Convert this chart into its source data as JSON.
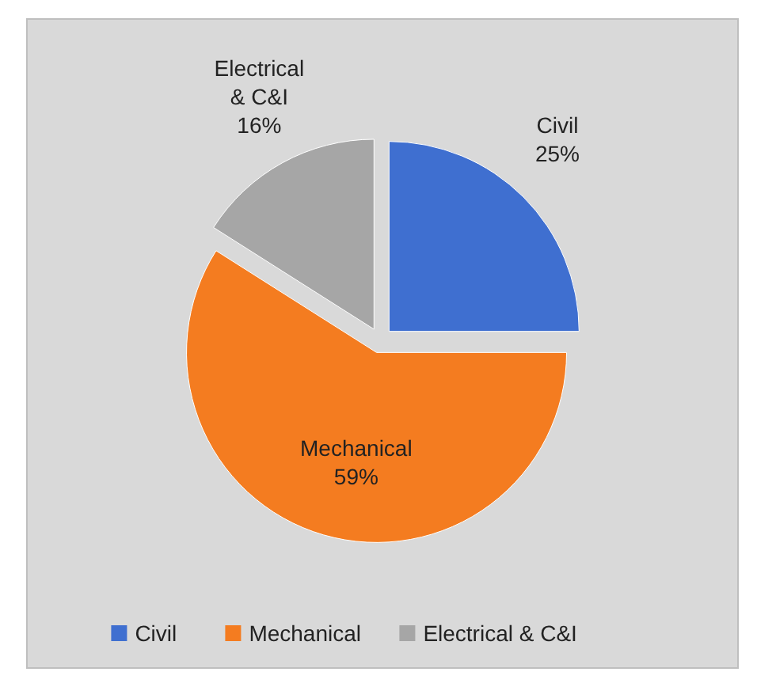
{
  "chart_data": {
    "type": "pie",
    "categories": [
      "Civil",
      "Mechanical",
      "Electrical & C&I"
    ],
    "values": [
      25,
      59,
      16
    ],
    "value_labels": [
      "25%",
      "59%",
      "16%"
    ],
    "colors": [
      "#3f6fd0",
      "#f47c20",
      "#a6a6a6"
    ],
    "legend": "bottom"
  }
}
